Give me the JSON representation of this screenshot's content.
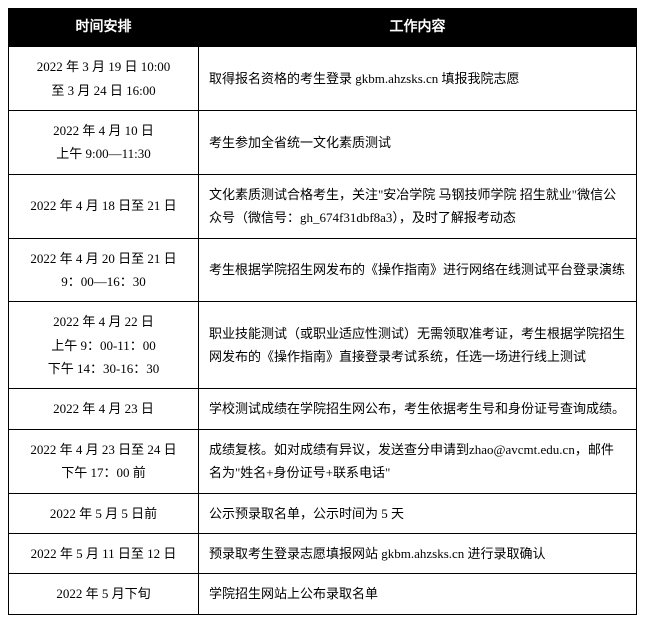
{
  "table": {
    "headers": [
      "时间安排",
      "工作内容"
    ],
    "rows": [
      {
        "time": "2022 年 3 月 19 日 10:00\n至 3 月 24 日 16:00",
        "content": "取得报名资格的考生登录 gkbm.ahzsks.cn 填报我院志愿"
      },
      {
        "time": "2022 年 4 月 10 日\n上午 9:00—11:30",
        "content": "考生参加全省统一文化素质测试"
      },
      {
        "time": "2022 年 4 月 18 日至 21 日",
        "content": "文化素质测试合格考生，关注\"安冶学院 马钢技师学院 招生就业\"微信公众号（微信号：gh_674f31dbf8a3），及时了解报考动态"
      },
      {
        "time": "2022 年 4 月 20 日至 21 日\n9：00—16：30",
        "content": "考生根据学院招生网发布的《操作指南》进行网络在线测试平台登录演练"
      },
      {
        "time": "2022 年 4 月 22 日\n上午 9：00-11：00\n下午 14：30-16：30",
        "content": "职业技能测试（或职业适应性测试）无需领取准考证，考生根据学院招生网发布的《操作指南》直接登录考试系统，任选一场进行线上测试"
      },
      {
        "time": "2022 年 4 月 23 日",
        "content": "学校测试成绩在学院招生网公布，考生依据考生号和身份证号查询成绩。"
      },
      {
        "time": "2022 年 4 月 23 日至 24 日\n下午 17：00 前",
        "content": "成绩复核。如对成绩有异议，发送查分申请到zhao@avcmt.edu.cn，邮件名为\"姓名+身份证号+联系电话\""
      },
      {
        "time": "2022 年 5 月 5 日前",
        "content": "公示预录取名单，公示时间为 5 天"
      },
      {
        "time": "2022 年 5 月 11 日至 12 日",
        "content": "预录取考生登录志愿填报网站 gkbm.ahzsks.cn 进行录取确认"
      },
      {
        "time": "2022 年 5 月下旬",
        "content": "学院招生网站上公布录取名单"
      }
    ]
  }
}
